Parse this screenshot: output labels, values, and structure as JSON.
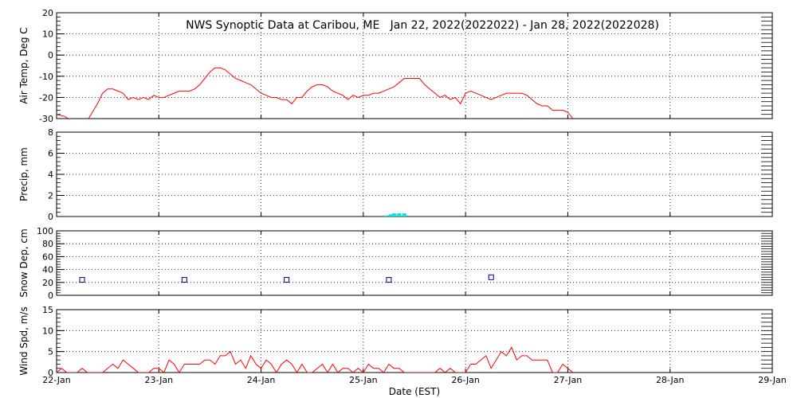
{
  "chart_data": {
    "type": "line",
    "title": "NWS Synoptic Data at Caribou, ME   Jan 22, 2022(2022022) - Jan 28, 2022(2022028)",
    "xlabel": "Date (EST)",
    "x_ticks": [
      "22-Jan",
      "23-Jan",
      "24-Jan",
      "25-Jan",
      "26-Jan",
      "27-Jan",
      "28-Jan",
      "29-Jan"
    ],
    "xlim": [
      0,
      7
    ],
    "grid": true,
    "panels": [
      {
        "id": "air-temp",
        "type": "line",
        "ylabel": "Air Temp, Deg C",
        "ylim": [
          -30,
          20
        ],
        "yticks": [
          -30,
          -20,
          -10,
          0,
          10,
          20
        ],
        "color": "#ff0000",
        "series": [
          {
            "x": [
              0,
              0.08,
              0.15,
              0.3,
              0.35,
              0.4,
              0.45,
              0.5,
              0.55,
              0.6,
              0.65,
              0.7,
              0.75,
              0.8,
              0.85,
              0.9,
              0.95,
              1.0,
              1.05,
              1.1,
              1.15,
              1.2,
              1.25,
              1.3,
              1.35,
              1.4,
              1.45,
              1.5,
              1.55,
              1.6,
              1.65,
              1.7,
              1.75,
              1.8,
              1.85,
              1.9,
              1.95,
              2.0,
              2.05,
              2.1,
              2.15,
              2.2,
              2.25,
              2.3,
              2.35,
              2.4,
              2.45,
              2.5,
              2.55,
              2.6,
              2.65,
              2.7,
              2.75,
              2.8,
              2.85,
              2.9,
              2.95,
              3.0,
              3.05,
              3.1,
              3.15,
              3.2,
              3.25,
              3.3,
              3.35,
              3.4,
              3.45,
              3.5,
              3.55,
              3.6,
              3.65,
              3.7,
              3.75,
              3.8,
              3.85,
              3.9,
              3.95,
              4.0,
              4.05,
              4.1,
              4.15,
              4.2,
              4.25,
              4.3,
              4.35,
              4.4,
              4.45,
              4.5,
              4.55,
              4.6,
              4.65,
              4.7,
              4.75,
              4.8,
              4.85,
              4.9,
              4.95,
              5.0,
              5.05
            ],
            "y": [
              -28,
              -29,
              -31,
              -31,
              -27,
              -23,
              -18,
              -16,
              -16,
              -17,
              -18,
              -21,
              -20,
              -21,
              -20,
              -21,
              -19,
              -20,
              -20,
              -19,
              -18,
              -17,
              -17,
              -17,
              -16,
              -14,
              -11,
              -8,
              -6,
              -6,
              -7,
              -9,
              -11,
              -12,
              -13,
              -14,
              -16,
              -18,
              -19,
              -20,
              -20,
              -21,
              -21,
              -23,
              -20,
              -20,
              -17,
              -15,
              -14,
              -14,
              -15,
              -17,
              -18,
              -19,
              -21,
              -19,
              -20,
              -19,
              -19,
              -18,
              -18,
              -17,
              -16,
              -15,
              -13,
              -11,
              -11,
              -11,
              -11,
              -14,
              -16,
              -18,
              -20,
              -19,
              -21,
              -20,
              -23,
              -18,
              -17,
              -18,
              -19,
              -20,
              -21,
              -20,
              -19,
              -18,
              -18,
              -18,
              -18,
              -19,
              -21,
              -23,
              -24,
              -24,
              -26,
              -26,
              -26,
              -27,
              -30
            ]
          }
        ]
      },
      {
        "id": "precip",
        "type": "bar",
        "ylabel": "Precip, mm",
        "ylim": [
          0,
          8
        ],
        "yticks": [
          0,
          2,
          4,
          6,
          8
        ],
        "color": "#00e5e5",
        "bar_width": 0.04,
        "series": [
          {
            "x": [
              3.22,
              3.27,
              3.3,
              3.35,
              3.4
            ],
            "y": [
              0.1,
              0.2,
              0.3,
              0.3,
              0.3
            ]
          }
        ]
      },
      {
        "id": "snow-depth",
        "type": "scatter",
        "ylabel": "Snow Dep, cm",
        "ylim": [
          0,
          100
        ],
        "yticks": [
          0,
          20,
          40,
          60,
          80,
          100
        ],
        "color": "#00008b",
        "series": [
          {
            "x": [
              0.25,
              1.25,
              2.25,
              3.25,
              4.25
            ],
            "y": [
              24,
              24,
              24,
              24,
              28
            ]
          }
        ]
      },
      {
        "id": "wind-speed",
        "type": "line",
        "ylabel": "Wind Spd, m/s",
        "ylim": [
          0,
          15
        ],
        "yticks": [
          0,
          5,
          10,
          15
        ],
        "color": "#ff0000",
        "series": [
          {
            "x": [
              0,
              0.05,
              0.1,
              0.15,
              0.2,
              0.25,
              0.3,
              0.35,
              0.4,
              0.45,
              0.5,
              0.55,
              0.6,
              0.65,
              0.7,
              0.75,
              0.8,
              0.85,
              0.9,
              0.95,
              1.0,
              1.05,
              1.1,
              1.15,
              1.2,
              1.25,
              1.3,
              1.35,
              1.4,
              1.45,
              1.5,
              1.55,
              1.6,
              1.65,
              1.7,
              1.75,
              1.8,
              1.85,
              1.9,
              1.95,
              2.0,
              2.05,
              2.1,
              2.15,
              2.2,
              2.25,
              2.3,
              2.35,
              2.4,
              2.45,
              2.5,
              2.55,
              2.6,
              2.65,
              2.7,
              2.75,
              2.8,
              2.85,
              2.9,
              2.95,
              3.0,
              3.05,
              3.1,
              3.15,
              3.2,
              3.25,
              3.3,
              3.35,
              3.4,
              3.45,
              3.5,
              3.55,
              3.6,
              3.65,
              3.7,
              3.75,
              3.8,
              3.85,
              3.9,
              3.95,
              4.0,
              4.05,
              4.1,
              4.15,
              4.2,
              4.25,
              4.3,
              4.35,
              4.4,
              4.45,
              4.5,
              4.55,
              4.6,
              4.65,
              4.7,
              4.75,
              4.8,
              4.85,
              4.9,
              4.95,
              5.0,
              5.05
            ],
            "y": [
              0,
              1,
              0,
              0,
              0,
              1,
              0,
              0,
              0,
              0,
              1,
              2,
              1,
              3,
              2,
              1,
              0,
              0,
              0,
              1,
              1,
              0,
              3,
              2,
              0,
              2,
              2,
              2,
              2,
              3,
              3,
              2,
              4,
              4,
              5,
              2,
              3,
              1,
              4,
              2,
              1,
              3,
              2,
              0,
              2,
              3,
              2,
              0,
              2,
              0,
              0,
              1,
              2,
              0,
              2,
              0,
              1,
              1,
              0,
              1,
              0,
              2,
              1,
              1,
              0,
              2,
              1,
              1,
              0,
              0,
              0,
              0,
              0,
              0,
              0,
              1,
              0,
              1,
              0,
              0,
              0,
              2,
              2,
              3,
              4,
              1,
              3,
              5,
              4,
              6,
              3,
              4,
              4,
              3,
              3,
              3,
              3,
              0,
              0,
              2,
              1,
              0
            ]
          }
        ]
      }
    ]
  }
}
